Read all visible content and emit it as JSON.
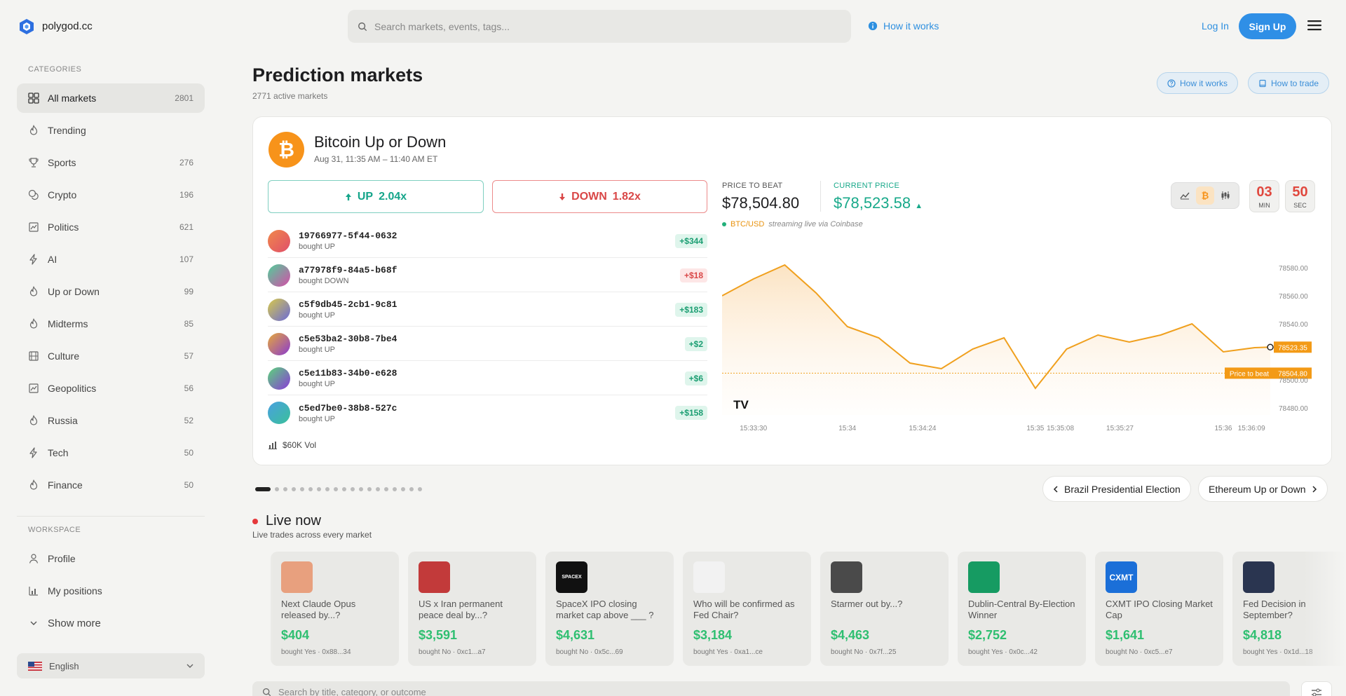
{
  "header": {
    "logo_text": "polygod.cc",
    "search_placeholder": "Search markets, events, tags...",
    "how_it_works": "How it works",
    "login": "Log In",
    "signup": "Sign Up"
  },
  "sidebar": {
    "categories_title": "CATEGORIES",
    "items": [
      {
        "label": "All markets",
        "count": "2801",
        "icon": "grid-icon"
      },
      {
        "label": "Trending",
        "count": "",
        "icon": "flame-icon"
      },
      {
        "label": "Sports",
        "count": "276",
        "icon": "trophy-icon"
      },
      {
        "label": "Crypto",
        "count": "196",
        "icon": "coins-icon"
      },
      {
        "label": "Politics",
        "count": "621",
        "icon": "landmark-icon"
      },
      {
        "label": "AI",
        "count": "107",
        "icon": "bolt-icon"
      },
      {
        "label": "Up or Down",
        "count": "99",
        "icon": "flame-icon"
      },
      {
        "label": "Midterms",
        "count": "85",
        "icon": "flame-icon"
      },
      {
        "label": "Culture",
        "count": "57",
        "icon": "film-icon"
      },
      {
        "label": "Geopolitics",
        "count": "56",
        "icon": "landmark-icon"
      },
      {
        "label": "Russia",
        "count": "52",
        "icon": "flame-icon"
      },
      {
        "label": "Tech",
        "count": "50",
        "icon": "bolt-icon"
      },
      {
        "label": "Finance",
        "count": "50",
        "icon": "flame-icon"
      }
    ],
    "workspace_title": "WORKSPACE",
    "workspace_items": [
      {
        "label": "Profile",
        "icon": "user-icon"
      },
      {
        "label": "My positions",
        "icon": "bar-chart-icon"
      },
      {
        "label": "Show more",
        "icon": "chevron-down-icon"
      }
    ],
    "language": "English"
  },
  "page": {
    "title": "Prediction markets",
    "subtitle": "2771 active markets",
    "how_it_works": "How it works",
    "how_to_trade": "How to trade"
  },
  "featured": {
    "logo_glyph": "₿",
    "title": "Bitcoin Up or Down",
    "date": "Aug 31, 11:35 AM – 11:40 AM ET",
    "up_label": "UP",
    "up_mult": "2.04x",
    "down_label": "DOWN",
    "down_mult": "1.82x",
    "trades": [
      {
        "id": "19766977-5f44-0632",
        "action": "bought UP",
        "amount": "+$344",
        "positive": true,
        "c1": "#f0884a",
        "c2": "#e04e6a"
      },
      {
        "id": "a77978f9-84a5-b68f",
        "action": "bought DOWN",
        "amount": "+$18",
        "positive": false,
        "c1": "#4fcf9a",
        "c2": "#d64ea8"
      },
      {
        "id": "c5f9db45-2cb1-9c81",
        "action": "bought UP",
        "amount": "+$183",
        "positive": true,
        "c1": "#d8c94a",
        "c2": "#6a6ad8"
      },
      {
        "id": "c5e53ba2-30b8-7be4",
        "action": "bought UP",
        "amount": "+$2",
        "positive": true,
        "c1": "#e6a93a",
        "c2": "#8a3ad0"
      },
      {
        "id": "c5e11b83-34b0-e628",
        "action": "bought UP",
        "amount": "+$6",
        "positive": true,
        "c1": "#5ad67a",
        "c2": "#8a3ad8"
      },
      {
        "id": "c5ed7be0-38b8-527c",
        "action": "bought UP",
        "amount": "+$158",
        "positive": true,
        "c1": "#4aa0e0",
        "c2": "#3ac09a"
      }
    ],
    "volume": "$60K Vol",
    "price_to_beat_label": "PRICE TO BEAT",
    "price_to_beat": "$78,504.80",
    "current_price_label": "CURRENT PRICE",
    "current_price": "$78,523.58",
    "pair": "BTC/USD",
    "stream_note": "streaming live via Coinbase",
    "timer_min": "03",
    "timer_min_label": "MIN",
    "timer_sec": "50",
    "timer_sec_label": "SEC",
    "tv_logo": "TV"
  },
  "chart_data": {
    "type": "line",
    "series": [
      {
        "x": [
          "15:33:20",
          "15:33:30",
          "15:33:40",
          "15:33:50",
          "15:34:00",
          "15:34:10",
          "15:34:20",
          "15:34:30",
          "15:34:40",
          "15:34:50",
          "15:35:00",
          "15:35:10",
          "15:35:20",
          "15:35:30",
          "15:35:40",
          "15:35:50",
          "15:36:00",
          "15:36:10",
          "15:36:15"
        ],
        "values": [
          78560,
          78572,
          78582,
          78562,
          78538,
          78530,
          78512,
          78508,
          78522,
          78530,
          78494,
          78522,
          78532,
          78527,
          78532,
          78540,
          78520,
          78523,
          78523.35
        ]
      }
    ],
    "x_ticks": [
      "15:33:30",
      "15:34",
      "15:34:24",
      "15:35",
      "15:35:08",
      "15:35:27",
      "15:36",
      "15:36:09"
    ],
    "y_ticks": [
      "78580.00",
      "78560.00",
      "78540.00",
      "78500.00",
      "78480.00"
    ],
    "ylim": [
      78475,
      78590
    ],
    "reference_line": {
      "label": "Price to beat",
      "value": 78504.8,
      "value_label": "78504.80"
    },
    "last_value_label": "78523.35",
    "line_color": "#f0a01e"
  },
  "carousel": {
    "dot_count": 19,
    "active_dot": 0,
    "prev": "Brazil Presidential Election",
    "next": "Ethereum Up or Down"
  },
  "live": {
    "title": "Live now",
    "subtitle": "Live trades across every market",
    "cards": [
      {
        "title": "Next Claude Opus released by...?",
        "amount": "$404",
        "foot": "bought Yes · 0x88...34",
        "img": "#e8a07e"
      },
      {
        "title": "US x Iran permanent peace deal by...?",
        "amount": "$3,591",
        "foot": "bought No · 0xc1...a7",
        "img": "#c23a3a"
      },
      {
        "title": "SpaceX IPO closing market cap above ___ ?",
        "amount": "$4,631",
        "foot": "bought No · 0x5c...69",
        "img": "#111111",
        "img_text": "SPACEX"
      },
      {
        "title": "Who will be confirmed as Fed Chair?",
        "amount": "$3,184",
        "foot": "bought Yes · 0xa1...ce",
        "img": "#f2f2f2"
      },
      {
        "title": "Starmer out by...?",
        "amount": "$4,463",
        "foot": "bought No · 0x7f...25",
        "img": "#4a4a4a"
      },
      {
        "title": "Dublin-Central By-Election Winner",
        "amount": "$2,752",
        "foot": "bought Yes · 0x0c...42",
        "img": "#169b62"
      },
      {
        "title": "CXMT IPO Closing Market Cap",
        "amount": "$1,641",
        "foot": "bought No · 0xc5...e7",
        "img": "#1b6fd8",
        "img_text": "CXMT"
      },
      {
        "title": "Fed Decision in September?",
        "amount": "$4,818",
        "foot": "bought Yes · 0x1d...18",
        "img": "#2a3550"
      }
    ]
  },
  "bottom_search_placeholder": "Search by title, category, or outcome"
}
